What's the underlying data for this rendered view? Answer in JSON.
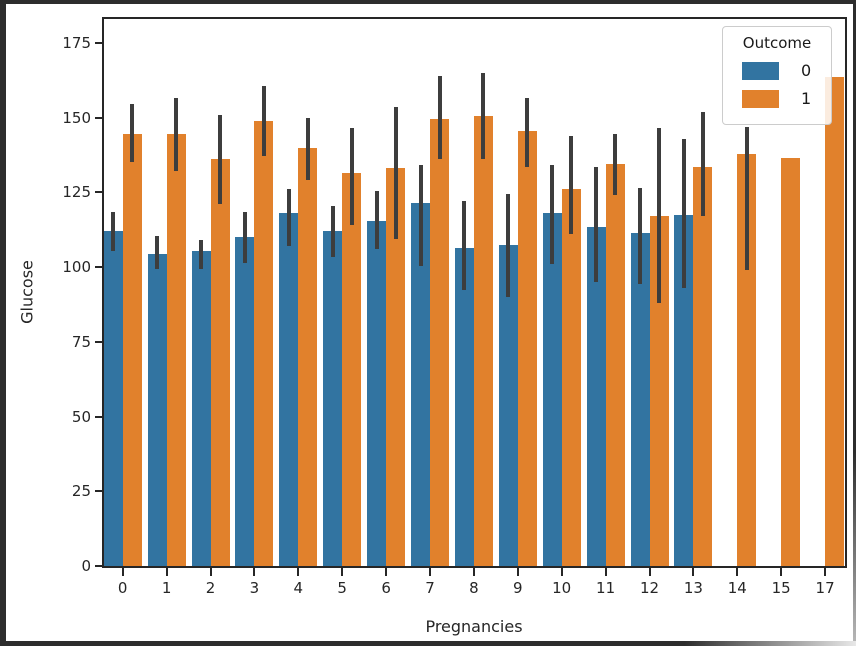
{
  "figure": {
    "background_color": "#ffffff",
    "frame_color": "#2d2d2d",
    "text_color": "#262626"
  },
  "chart_data": {
    "type": "bar",
    "title": "",
    "xlabel": "Pregnancies",
    "ylabel": "Glucose",
    "categories": [
      "0",
      "1",
      "2",
      "3",
      "4",
      "5",
      "6",
      "7",
      "8",
      "9",
      "10",
      "11",
      "12",
      "13",
      "14",
      "15",
      "17"
    ],
    "ylim": [
      0,
      183
    ],
    "yticks": [
      0,
      25,
      50,
      75,
      100,
      125,
      150,
      175
    ],
    "grid": false,
    "error_bar_color": "#3d3d3d",
    "series": [
      {
        "name": "0",
        "color": "#3274a1",
        "values": [
          112,
          104.5,
          105.5,
          110,
          118,
          112,
          115.5,
          121.5,
          106.5,
          107.5,
          118,
          113.5,
          111.5,
          117.5,
          null,
          null,
          null
        ],
        "errors": [
          [
            105.5,
            118.5
          ],
          [
            99.5,
            110.5
          ],
          [
            99.5,
            109
          ],
          [
            101.5,
            118.5
          ],
          [
            107,
            126
          ],
          [
            103.5,
            120.5
          ],
          [
            106,
            125.5
          ],
          [
            100.5,
            134
          ],
          [
            92.5,
            122
          ],
          [
            90,
            124.5
          ],
          [
            101,
            134
          ],
          [
            95,
            133.5
          ],
          [
            94.5,
            126.5
          ],
          [
            93,
            143
          ],
          null,
          null,
          null
        ]
      },
      {
        "name": "1",
        "color": "#e1812c",
        "values": [
          144.5,
          144.5,
          136,
          149,
          140,
          131.5,
          133,
          149.5,
          150.5,
          145.5,
          126,
          134.5,
          117,
          133.5,
          138,
          136.5,
          163.5
        ],
        "errors": [
          [
            135,
            154.5
          ],
          [
            132,
            156.5
          ],
          [
            121,
            151
          ],
          [
            137,
            160.5
          ],
          [
            129,
            150
          ],
          [
            114,
            146.5
          ],
          [
            109.5,
            153.5
          ],
          [
            136,
            164
          ],
          [
            136,
            165
          ],
          [
            133.5,
            156.5
          ],
          [
            111,
            144
          ],
          [
            124,
            144.5
          ],
          [
            88,
            146.5
          ],
          [
            117,
            152
          ],
          [
            99,
            147
          ],
          null,
          null
        ]
      }
    ],
    "legend": {
      "title": "Outcome",
      "position": "upper right",
      "entries": [
        {
          "label": "0",
          "color": "#3274a1"
        },
        {
          "label": "1",
          "color": "#e1812c"
        }
      ]
    }
  }
}
